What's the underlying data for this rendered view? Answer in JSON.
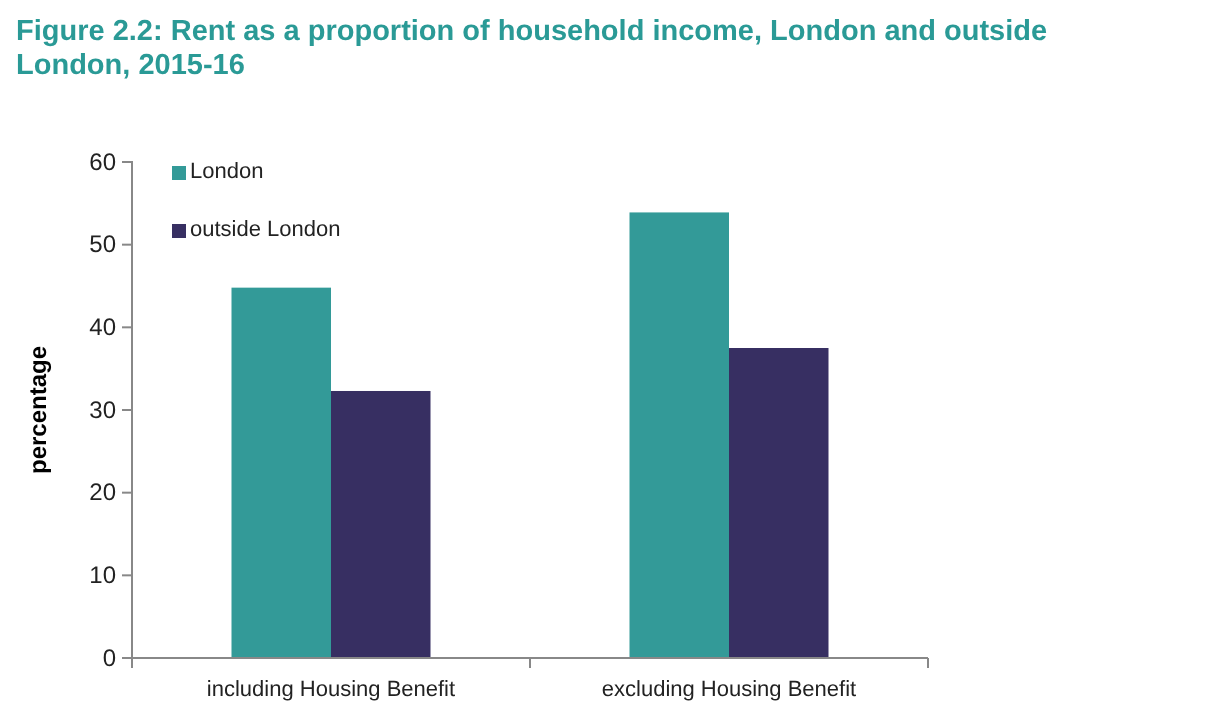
{
  "chart_data": {
    "type": "bar",
    "title": "Figure 2.2: Rent as a proportion of household income, London and outside London, 2015-16",
    "ylabel": "percentage",
    "categories": [
      "including Housing Benefit",
      "excluding Housing Benefit"
    ],
    "series": [
      {
        "name": "London",
        "color": "#339a98",
        "values": [
          44.8,
          53.9
        ]
      },
      {
        "name": "outside London",
        "color": "#372f62",
        "values": [
          32.3,
          37.5
        ]
      }
    ],
    "ylim": [
      0,
      60
    ],
    "yticks": [
      0,
      10,
      20,
      30,
      40,
      50,
      60
    ],
    "legend": "top left"
  }
}
